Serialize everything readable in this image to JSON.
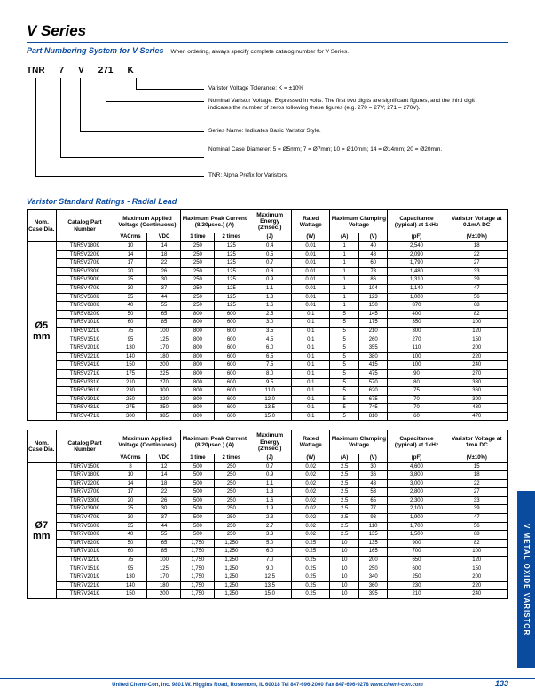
{
  "title": "V Series",
  "subtitle": "Part Numbering System for V Series",
  "subtitle_note": "When ordering, always specify complete catalog number for V Series.",
  "partnum": {
    "codes": [
      "TNR",
      "7",
      "V",
      "271",
      "K"
    ],
    "descs": [
      "Varistor Voltage Tolerance: K = ±10%",
      "Nominal Varistor Voltage: Expressed in volts. The first two digits are significant figures, and the third digit indicates the number of zeros following these figures (e.g. 270 = 27V; 271 = 270V).",
      "Series Name: Indicates Basic Varistor Style.",
      "Nominal Case Diameter: 5 = Ø5mm; 7 = Ø7mm; 10 = Ø10mm; 14 = Ø14mm; 20 = Ø20mm.",
      "TNR: Alpha Prefix for Varistors."
    ]
  },
  "section_head": "Varistor Standard Ratings - Radial Lead",
  "headers": {
    "dia": "Nom. Case Dia.",
    "catalog": "Catalog Part Number",
    "mavc": "Maximum Applied Voltage (Continuous)",
    "vacrms": "VACrms",
    "vdc": "VDC",
    "mpc": "Maximum Peak Current (8/20µsec.) (A)",
    "t1": "1 time",
    "t2": "2 times",
    "energy": "Maximum Energy (2msec.)",
    "j": "(J)",
    "rated": "Rated Wattage",
    "w": "(W)",
    "clamp": "Maximum Clamping Voltage",
    "a": "(A)",
    "v": "(V)",
    "cap": "Capacitance (typical) at 1kHz",
    "pf": "(pF)",
    "vv1": "Varistor Voltage at 0.1mA DC",
    "vv2": "Varistor Voltage at 1mA DC",
    "vtol": "(V±10%)"
  },
  "t1": {
    "dia": "Ø5 mm",
    "rows": [
      [
        "TNR5V180K",
        "10",
        "14",
        "250",
        "125",
        "0.4",
        "0.01",
        "1",
        "40",
        "2,540",
        "18"
      ],
      [
        "TNR5V220K",
        "14",
        "18",
        "250",
        "125",
        "0.5",
        "0.01",
        "1",
        "48",
        "2,090",
        "22"
      ],
      [
        "TNR5V270K",
        "17",
        "22",
        "250",
        "125",
        "0.7",
        "0.01",
        "1",
        "60",
        "1,790",
        "27"
      ],
      [
        "TNR5V330K",
        "20",
        "26",
        "250",
        "125",
        "0.8",
        "0.01",
        "1",
        "73",
        "1,480",
        "33"
      ],
      [
        "TNR5V390K",
        "25",
        "30",
        "250",
        "125",
        "0.9",
        "0.01",
        "1",
        "86",
        "1,310",
        "39"
      ],
      [
        "TNR5V470K",
        "30",
        "37",
        "250",
        "125",
        "1.1",
        "0.01",
        "1",
        "104",
        "1,140",
        "47"
      ],
      [
        "TNR5V560K",
        "35",
        "44",
        "250",
        "125",
        "1.3",
        "0.01",
        "1",
        "123",
        "1,000",
        "56"
      ],
      [
        "TNR5V680K",
        "40",
        "55",
        "250",
        "125",
        "1.6",
        "0.01",
        "1",
        "150",
        "870",
        "68"
      ],
      [
        "TNR5V820K",
        "50",
        "65",
        "800",
        "600",
        "2.5",
        "0.1",
        "5",
        "145",
        "400",
        "82"
      ],
      [
        "TNR5V101K",
        "60",
        "85",
        "800",
        "600",
        "3.0",
        "0.1",
        "5",
        "175",
        "350",
        "100"
      ],
      [
        "TNR5V121K",
        "75",
        "100",
        "800",
        "600",
        "3.5",
        "0.1",
        "5",
        "210",
        "300",
        "120"
      ],
      [
        "TNR5V151K",
        "95",
        "125",
        "800",
        "600",
        "4.5",
        "0.1",
        "5",
        "260",
        "270",
        "150"
      ],
      [
        "TNR5V201K",
        "130",
        "170",
        "800",
        "600",
        "6.0",
        "0.1",
        "5",
        "355",
        "110",
        "200"
      ],
      [
        "TNR5V221K",
        "140",
        "180",
        "800",
        "600",
        "6.5",
        "0.1",
        "5",
        "380",
        "100",
        "220"
      ],
      [
        "TNR5V241K",
        "150",
        "200",
        "800",
        "600",
        "7.5",
        "0.1",
        "5",
        "415",
        "100",
        "240"
      ],
      [
        "TNR5V271K",
        "175",
        "225",
        "800",
        "600",
        "8.0",
        "0.1",
        "5",
        "475",
        "90",
        "270"
      ],
      [
        "TNR5V331K",
        "210",
        "270",
        "800",
        "600",
        "9.5",
        "0.1",
        "5",
        "570",
        "80",
        "330"
      ],
      [
        "TNR5V361K",
        "230",
        "300",
        "800",
        "600",
        "11.0",
        "0.1",
        "5",
        "620",
        "75",
        "360"
      ],
      [
        "TNR5V391K",
        "250",
        "320",
        "800",
        "600",
        "12.0",
        "0.1",
        "5",
        "675",
        "70",
        "390"
      ],
      [
        "TNR5V431K",
        "275",
        "350",
        "800",
        "600",
        "13.5",
        "0.1",
        "5",
        "745",
        "70",
        "430"
      ],
      [
        "TNR5V471K",
        "300",
        "385",
        "800",
        "600",
        "15.0",
        "0.1",
        "5",
        "810",
        "60",
        "470"
      ]
    ]
  },
  "t2": {
    "dia": "Ø7 mm",
    "rows": [
      [
        "TNR7V150K",
        "8",
        "12",
        "500",
        "250",
        "0.7",
        "0.02",
        "2.5",
        "30",
        "4,600",
        "15"
      ],
      [
        "TNR7V180K",
        "10",
        "14",
        "500",
        "250",
        "0.9",
        "0.02",
        "2.5",
        "36",
        "3,800",
        "18"
      ],
      [
        "TNR7V220K",
        "14",
        "18",
        "500",
        "250",
        "1.1",
        "0.02",
        "2.5",
        "43",
        "3,000",
        "22"
      ],
      [
        "TNR7V270K",
        "17",
        "22",
        "500",
        "250",
        "1.3",
        "0.02",
        "2.5",
        "53",
        "2,800",
        "27"
      ],
      [
        "TNR7V330K",
        "20",
        "26",
        "500",
        "250",
        "1.6",
        "0.02",
        "2.5",
        "65",
        "2,300",
        "33"
      ],
      [
        "TNR7V390K",
        "25",
        "30",
        "500",
        "250",
        "1.9",
        "0.02",
        "2.5",
        "77",
        "2,100",
        "39"
      ],
      [
        "TNR7V470K",
        "30",
        "37",
        "500",
        "250",
        "2.3",
        "0.02",
        "2.5",
        "93",
        "1,900",
        "47"
      ],
      [
        "TNR7V560K",
        "35",
        "44",
        "500",
        "250",
        "2.7",
        "0.02",
        "2.5",
        "110",
        "1,700",
        "56"
      ],
      [
        "TNR7V680K",
        "40",
        "55",
        "500",
        "250",
        "3.3",
        "0.02",
        "2.5",
        "135",
        "1,500",
        "68"
      ],
      [
        "TNR7V820K",
        "50",
        "65",
        "1,750",
        "1,250",
        "5.0",
        "0.25",
        "10",
        "135",
        "900",
        "82"
      ],
      [
        "TNR7V101K",
        "60",
        "85",
        "1,750",
        "1,250",
        "6.0",
        "0.25",
        "10",
        "165",
        "700",
        "100"
      ],
      [
        "TNR7V121K",
        "75",
        "100",
        "1,750",
        "1,250",
        "7.0",
        "0.25",
        "10",
        "200",
        "650",
        "120"
      ],
      [
        "TNR7V151K",
        "95",
        "125",
        "1,750",
        "1,250",
        "9.0",
        "0.25",
        "10",
        "250",
        "600",
        "150"
      ],
      [
        "TNR7V201K",
        "130",
        "170",
        "1,750",
        "1,250",
        "12.5",
        "0.25",
        "10",
        "340",
        "250",
        "200"
      ],
      [
        "TNR7V221K",
        "140",
        "180",
        "1,750",
        "1,250",
        "13.5",
        "0.25",
        "10",
        "360",
        "230",
        "220"
      ],
      [
        "TNR7V241K",
        "150",
        "200",
        "1,750",
        "1,250",
        "15.0",
        "0.25",
        "10",
        "395",
        "210",
        "240"
      ]
    ]
  },
  "sidetab": "V\nMETAL OXIDE VARISTOR",
  "footer": "United Chemi-Con, Inc.  9801 W. Higgins Road, Rosemont, IL 60018  Tel 847-696-2000  Fax 847-696-9278  ",
  "footer_link": "www.chemi-con.com",
  "pagenum": "133"
}
